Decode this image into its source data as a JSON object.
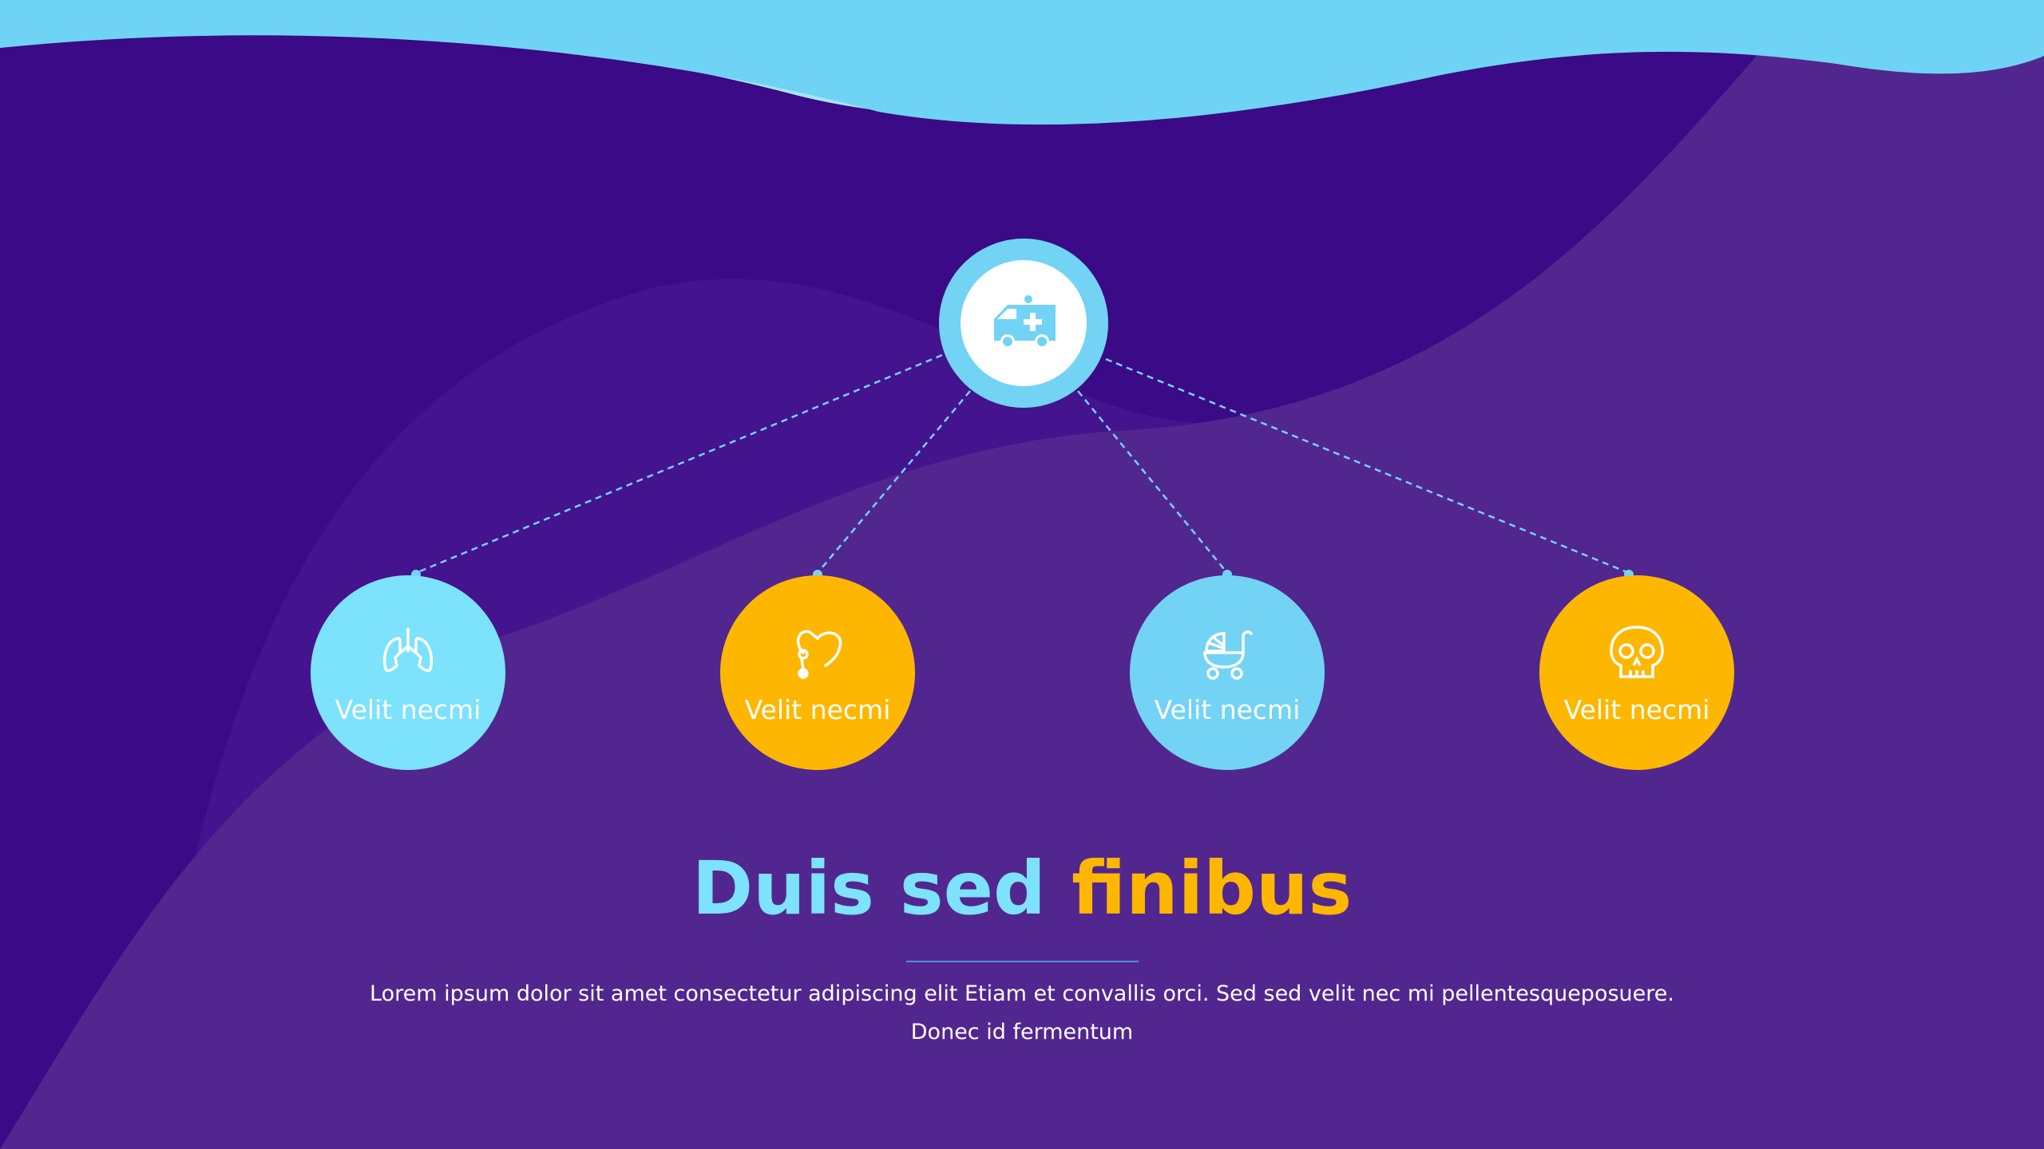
{
  "colors": {
    "background": "#3b0a86",
    "cyan": "#72d3f5",
    "light_cyan": "#7de2fc",
    "yellow": "#feb701",
    "purple_light": "#52268f"
  },
  "hub": {
    "icon": "ambulance-icon"
  },
  "nodes": [
    {
      "label": "Velit necmi",
      "icon": "lungs-icon",
      "color": "#7de2fc"
    },
    {
      "label": "Velit necmi",
      "icon": "stethoscope-icon",
      "color": "#feb701"
    },
    {
      "label": "Velit necmi",
      "icon": "baby-stroller-icon",
      "color": "#72d3f5"
    },
    {
      "label": "Velit necmi",
      "icon": "skull-icon",
      "color": "#feb701"
    }
  ],
  "title": {
    "part1": "Duis sed ",
    "part2": "finibus"
  },
  "body": {
    "line1": "Lorem ipsum dolor sit amet consectetur adipiscing elit Etiam et convallis orci. Sed sed velit nec mi pellentesqueposuere.",
    "line2": "Donec id fermentum"
  }
}
